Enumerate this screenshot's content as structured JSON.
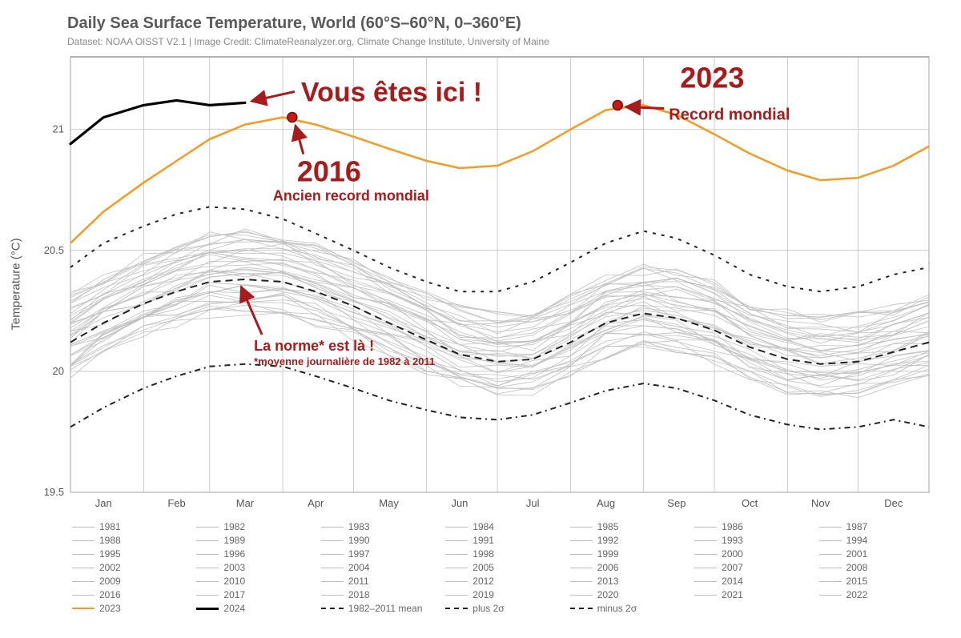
{
  "title": "Daily Sea Surface Temperature, World (60°S–60°N, 0–360°E)",
  "subtitle": "Dataset: NOAA OISST V2.1 | Image Credit: ClimateReanalyzer.org, Climate Change Institute, University of Maine",
  "ylabel": "Temperature (°C)",
  "chart": {
    "type": "line",
    "background_color": "#ffffff",
    "grid_color": "#b8b8b8",
    "axis_color": "#666666",
    "xlim": [
      1,
      365
    ],
    "ylim": [
      19.5,
      21.3
    ],
    "yticks": [
      19.5,
      20,
      20.5,
      21
    ],
    "ytick_labels": [
      "19.5",
      "20",
      "20.5",
      "21"
    ],
    "xticks": [
      15,
      46,
      75,
      105,
      136,
      166,
      197,
      228,
      258,
      289,
      319,
      350
    ],
    "xtick_labels": [
      "Jan",
      "Feb",
      "Mar",
      "Apr",
      "May",
      "Jun",
      "Jul",
      "Aug",
      "Sep",
      "Oct",
      "Nov",
      "Dec"
    ],
    "month_boundaries": [
      1,
      32,
      60,
      91,
      121,
      152,
      182,
      213,
      244,
      274,
      305,
      335,
      365
    ],
    "historical_color": "#bdbdbd",
    "historical_width": 0.9,
    "dashed_color": "#222222",
    "dashed_width": 2,
    "y2023_color": "#f59a22",
    "y2023_width": 2.5,
    "y2024_color": "#000000",
    "y2024_width": 3.2,
    "annotation_color": "#a61b1b",
    "marker_fill": "#c81919",
    "marker_stroke": "#6b0f0f",
    "marker_radius": 6,
    "sample_days": [
      1,
      15,
      32,
      46,
      60,
      75,
      91,
      105,
      121,
      136,
      152,
      166,
      182,
      197,
      213,
      228,
      244,
      258,
      274,
      289,
      305,
      319,
      335,
      350,
      365
    ],
    "mean": [
      20.12,
      20.2,
      20.28,
      20.33,
      20.37,
      20.38,
      20.37,
      20.33,
      20.27,
      20.2,
      20.13,
      20.07,
      20.04,
      20.05,
      20.12,
      20.2,
      20.24,
      20.22,
      20.17,
      20.1,
      20.05,
      20.03,
      20.04,
      20.08,
      20.12
    ],
    "plus2sigma": [
      20.43,
      20.53,
      20.6,
      20.65,
      20.68,
      20.67,
      20.63,
      20.57,
      20.5,
      20.43,
      20.37,
      20.33,
      20.33,
      20.37,
      20.45,
      20.53,
      20.58,
      20.55,
      20.48,
      20.4,
      20.35,
      20.33,
      20.35,
      20.4,
      20.43
    ],
    "minus2sigma": [
      19.77,
      19.85,
      19.93,
      19.98,
      20.02,
      20.03,
      20.02,
      19.98,
      19.93,
      19.88,
      19.84,
      19.81,
      19.8,
      19.82,
      19.87,
      19.92,
      19.95,
      19.93,
      19.88,
      19.82,
      19.78,
      19.76,
      19.77,
      19.8,
      19.77
    ],
    "y2023": [
      20.53,
      20.66,
      20.78,
      20.87,
      20.96,
      21.02,
      21.05,
      21.02,
      20.97,
      20.92,
      20.87,
      20.84,
      20.85,
      20.91,
      21.0,
      21.08,
      21.1,
      21.06,
      20.98,
      20.9,
      20.83,
      20.79,
      20.8,
      20.85,
      20.93
    ],
    "y2024": [
      20.94,
      21.05,
      21.1,
      21.12,
      21.1,
      21.11
    ],
    "historical_base": [
      [
        20.0,
        20.08,
        20.16,
        20.21,
        20.25,
        20.26,
        20.25,
        20.21,
        20.15,
        20.08,
        20.01,
        19.95,
        19.92,
        19.93,
        20.0,
        20.08,
        20.12,
        20.1,
        20.05,
        19.98,
        19.93,
        19.91,
        19.92,
        19.96,
        20.0
      ],
      [
        20.05,
        20.13,
        20.21,
        20.26,
        20.3,
        20.31,
        20.3,
        20.26,
        20.2,
        20.13,
        20.06,
        20.0,
        19.97,
        19.98,
        20.05,
        20.13,
        20.17,
        20.15,
        20.1,
        20.03,
        19.98,
        19.96,
        19.97,
        20.01,
        20.05
      ],
      [
        20.09,
        20.17,
        20.25,
        20.3,
        20.34,
        20.35,
        20.34,
        20.3,
        20.24,
        20.17,
        20.1,
        20.04,
        20.01,
        20.02,
        20.09,
        20.17,
        20.21,
        20.19,
        20.14,
        20.07,
        20.02,
        20.0,
        20.01,
        20.05,
        20.09
      ],
      [
        20.14,
        20.22,
        20.3,
        20.35,
        20.39,
        20.4,
        20.39,
        20.35,
        20.29,
        20.22,
        20.15,
        20.09,
        20.06,
        20.07,
        20.14,
        20.22,
        20.26,
        20.24,
        20.19,
        20.12,
        20.07,
        20.05,
        20.06,
        20.1,
        20.14
      ],
      [
        20.18,
        20.26,
        20.34,
        20.39,
        20.43,
        20.44,
        20.43,
        20.39,
        20.33,
        20.26,
        20.19,
        20.13,
        20.1,
        20.11,
        20.18,
        20.26,
        20.3,
        20.28,
        20.23,
        20.16,
        20.11,
        20.09,
        20.1,
        20.14,
        20.18
      ],
      [
        20.22,
        20.3,
        20.38,
        20.43,
        20.47,
        20.48,
        20.47,
        20.43,
        20.37,
        20.3,
        20.23,
        20.17,
        20.14,
        20.15,
        20.22,
        20.3,
        20.34,
        20.32,
        20.27,
        20.2,
        20.15,
        20.13,
        20.14,
        20.18,
        20.22
      ],
      [
        20.26,
        20.34,
        20.42,
        20.47,
        20.51,
        20.52,
        20.51,
        20.47,
        20.41,
        20.34,
        20.27,
        20.21,
        20.18,
        20.19,
        20.26,
        20.34,
        20.38,
        20.36,
        20.31,
        20.24,
        20.19,
        20.17,
        20.18,
        20.22,
        20.26
      ],
      [
        20.3,
        20.38,
        20.46,
        20.51,
        20.55,
        20.56,
        20.55,
        20.51,
        20.45,
        20.38,
        20.31,
        20.25,
        20.22,
        20.23,
        20.3,
        20.38,
        20.42,
        20.4,
        20.35,
        20.28,
        20.23,
        20.21,
        20.22,
        20.26,
        20.3
      ]
    ],
    "markers": [
      {
        "name": "2016-record",
        "day": 95,
        "value": 21.05
      },
      {
        "name": "2023-record",
        "day": 233,
        "value": 21.1
      }
    ]
  },
  "annotations": {
    "vous_etes_ici": {
      "text": "Vous êtes ici !",
      "sub": "",
      "fontsize": 34
    },
    "y2016": {
      "text": "2016",
      "sub": "Ancien record mondial",
      "fontsize": 36
    },
    "y2023": {
      "text": "2023",
      "sub": "Record mondial",
      "fontsize": 36
    },
    "norme": {
      "text": "La norme* est là !",
      "sub": "*moyenne journalière de 1982 à 2011",
      "fontsize": 18
    }
  },
  "legend": {
    "years": [
      "1981",
      "1982",
      "1983",
      "1984",
      "1985",
      "1986",
      "1987",
      "1988",
      "1989",
      "1990",
      "1991",
      "1992",
      "1993",
      "1994",
      "1995",
      "1996",
      "1997",
      "1998",
      "1999",
      "2000",
      "2001",
      "2002",
      "2003",
      "2004",
      "2005",
      "2006",
      "2007",
      "2008",
      "2009",
      "2010",
      "2011",
      "2012",
      "2013",
      "2014",
      "2015",
      "2016",
      "2017",
      "2018",
      "2019",
      "2020",
      "2021",
      "2022"
    ],
    "special": [
      {
        "label": "2023",
        "color": "#f59a22",
        "width": 2.5,
        "dash": "none"
      },
      {
        "label": "2024",
        "color": "#000000",
        "width": 3,
        "dash": "none"
      },
      {
        "label": "1982–2011 mean",
        "color": "#222222",
        "width": 2,
        "dash": "8,5"
      },
      {
        "label": "plus 2σ",
        "color": "#222222",
        "width": 2,
        "dash": "4,6"
      },
      {
        "label": "minus 2σ",
        "color": "#222222",
        "width": 2,
        "dash": "6,4,2,4"
      }
    ]
  }
}
